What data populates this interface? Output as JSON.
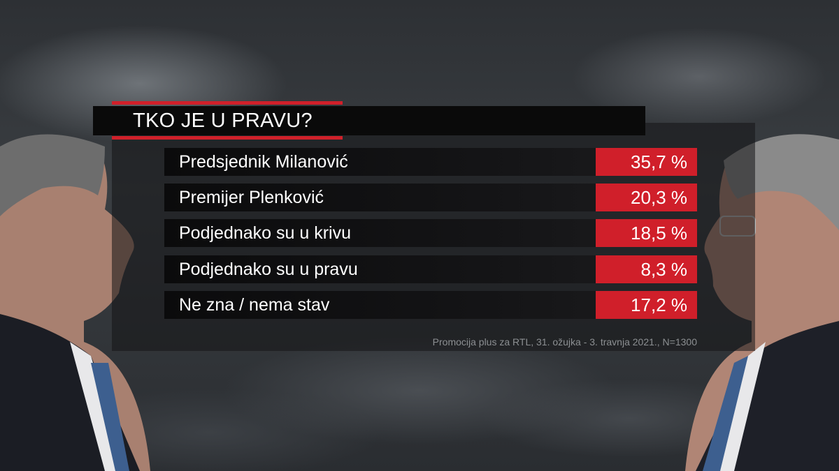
{
  "chart_data": {
    "type": "table",
    "title": "TKO JE U PRAVU?",
    "rows": [
      {
        "label": "Predsjednik Milanović",
        "value": 35.7,
        "display": "35,7 %"
      },
      {
        "label": "Premijer Plenković",
        "value": 20.3,
        "display": "20,3 %"
      },
      {
        "label": "Podjednako su u krivu",
        "value": 18.5,
        "display": "18,5 %"
      },
      {
        "label": "Podjednako su u pravu",
        "value": 8.3,
        "display": "8,3 %"
      },
      {
        "label": "Ne zna / nema stav",
        "value": 17.2,
        "display": "17,2 %"
      }
    ],
    "source": "Promocija plus za RTL, 31. ožujka - 3. travnja 2021., N=1300",
    "colors": {
      "accent": "#d01f2a",
      "row_bg": "#111113"
    }
  }
}
